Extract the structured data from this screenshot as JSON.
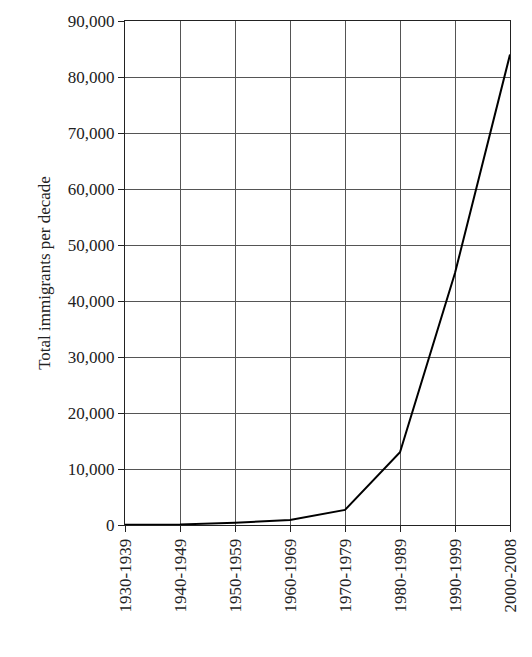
{
  "chart_data": {
    "type": "line",
    "y_label": "Total immigrants per decade",
    "categories": [
      "1930-1939",
      "1940-1949",
      "1950-1959",
      "1960-1969",
      "1970-1979",
      "1980-1989",
      "1990-1999",
      "2000-2008"
    ],
    "values": [
      50,
      100,
      400,
      900,
      2700,
      13000,
      45000,
      84000
    ],
    "color": "#000000",
    "ylim": [
      0,
      90000
    ],
    "yticks": [
      0,
      {
        "value": 10000,
        "label": "10,000"
      },
      {
        "value": 20000,
        "label": "20,000"
      },
      {
        "value": 30000,
        "label": "30,000"
      },
      {
        "value": 40000,
        "label": "40,000"
      },
      {
        "value": 50000,
        "label": "50,000"
      },
      {
        "value": 60000,
        "label": "60,000"
      },
      {
        "value": 70000,
        "label": "70,000"
      },
      {
        "value": 80000,
        "label": "80,000"
      },
      {
        "value": 90000,
        "label": "90,000"
      }
    ],
    "grid": true
  }
}
